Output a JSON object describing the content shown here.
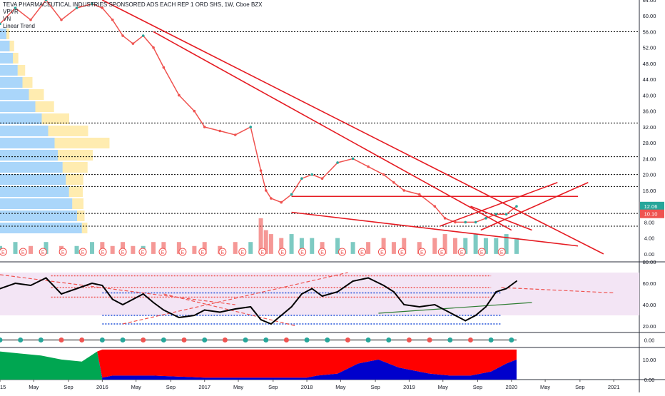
{
  "header": {
    "title": "TEVA PHARMACEUTICAL INDUSTRIES SPONSORED ADS EACH REP 1 ORD SHS, 1W, Cboe BZX",
    "indicators": [
      "VPVR",
      "VN",
      "Linear Trend"
    ]
  },
  "colors": {
    "up": "#26a69a",
    "down": "#ef5350",
    "trendline": "#e51c23",
    "rsi_line": "#000000",
    "rsi_band": "#f3e5f5",
    "vpvr_blue": "#64b5f6",
    "vpvr_yellow": "#ffd54f",
    "green_area": "#00a651",
    "red_area": "#ff0000",
    "blue_area": "#0000cc",
    "last_price_badge": "#26a69a",
    "second_badge": "#ef5350"
  },
  "chart_data": [
    {
      "type": "line",
      "title": "TEVA PHARMACEUTICAL INDUSTRIES SPONSORED ADS EACH REP 1 ORD SHS, 1W, Cboe BZX",
      "x_tick_labels": [
        "2015",
        "May",
        "Sep",
        "2016",
        "May",
        "Sep",
        "2017",
        "May",
        "Sep",
        "2018",
        "May",
        "Sep",
        "2019",
        "May",
        "Sep",
        "2020",
        "May",
        "Sep",
        "2021"
      ],
      "y_tick_labels": [
        "64.00",
        "60.00",
        "56.00",
        "52.00",
        "48.00",
        "44.00",
        "40.00",
        "36.00",
        "32.00",
        "28.00",
        "24.00",
        "20.00",
        "16.00",
        "12.00",
        "8.00",
        "4.00",
        "0.00"
      ],
      "ylim": [
        -2,
        64
      ],
      "price_labels": [
        "12.06",
        "10.10"
      ],
      "earnings_marker": "E",
      "x": [
        2015.0,
        2015.15,
        2015.3,
        2015.45,
        2015.6,
        2015.75,
        2015.9,
        2016.0,
        2016.1,
        2016.2,
        2016.3,
        2016.4,
        2016.5,
        2016.6,
        2016.75,
        2016.9,
        2017.0,
        2017.15,
        2017.3,
        2017.45,
        2017.55,
        2017.6,
        2017.65,
        2017.75,
        2017.85,
        2017.95,
        2018.05,
        2018.15,
        2018.3,
        2018.45,
        2018.6,
        2018.75,
        2018.85,
        2018.95,
        2019.1,
        2019.25,
        2019.35,
        2019.45,
        2019.55,
        2019.65,
        2019.75,
        2019.85,
        2019.95,
        2020.05
      ],
      "y": [
        58,
        62,
        59,
        64,
        59,
        62,
        63,
        62,
        59,
        55,
        53,
        55,
        52,
        47,
        40,
        36,
        32,
        31,
        30,
        32,
        21,
        16,
        14,
        13,
        15,
        19,
        20,
        19,
        23,
        24,
        22,
        20,
        18,
        16,
        15,
        12,
        9,
        8,
        8,
        8,
        9,
        10,
        10,
        12
      ],
      "volume": [
        2,
        3,
        2,
        3,
        2,
        2,
        3,
        3,
        2,
        3,
        2,
        2,
        3,
        3,
        3,
        2,
        3,
        2,
        3,
        3,
        9,
        6,
        5,
        4,
        5,
        4,
        4,
        3,
        4,
        3,
        3,
        4,
        3,
        4,
        3,
        4,
        5,
        4,
        4,
        5,
        4,
        4,
        5,
        4
      ],
      "trendlines": [
        {
          "x1": 2016.0,
          "y1": 64,
          "x2": 2020.9,
          "y2": 0
        },
        {
          "x1": 2016.5,
          "y1": 56,
          "x2": 2020.0,
          "y2": 6
        },
        {
          "x1": 2017.85,
          "y1": 14.5,
          "x2": 2020.65,
          "y2": 14.5
        },
        {
          "x1": 2017.85,
          "y1": 10.5,
          "x2": 2020.65,
          "y2": 2
        },
        {
          "x1": 2019.3,
          "y1": 7,
          "x2": 2020.45,
          "y2": 18
        },
        {
          "x1": 2019.7,
          "y1": 6,
          "x2": 2020.75,
          "y2": 18
        },
        {
          "x1": 2019.6,
          "y1": 12,
          "x2": 2020.2,
          "y2": 6
        }
      ],
      "horizontal_levels": [
        56.0,
        33.0,
        24.5,
        20.0,
        17.0,
        10.2,
        7.0
      ]
    },
    {
      "type": "line",
      "y_tick_labels": [
        "80.00",
        "60.00",
        "40.00",
        "20.00"
      ],
      "ylim": [
        14,
        80
      ],
      "band": [
        30,
        70
      ],
      "x": [
        2015.0,
        2015.15,
        2015.3,
        2015.45,
        2015.6,
        2015.75,
        2015.9,
        2016.0,
        2016.1,
        2016.2,
        2016.3,
        2016.4,
        2016.5,
        2016.6,
        2016.75,
        2016.9,
        2017.0,
        2017.15,
        2017.3,
        2017.45,
        2017.55,
        2017.65,
        2017.75,
        2017.85,
        2017.95,
        2018.05,
        2018.15,
        2018.3,
        2018.45,
        2018.6,
        2018.75,
        2018.85,
        2018.95,
        2019.1,
        2019.25,
        2019.35,
        2019.45,
        2019.55,
        2019.65,
        2019.75,
        2019.85,
        2019.95,
        2020.05
      ],
      "y": [
        55,
        60,
        58,
        65,
        50,
        55,
        60,
        58,
        45,
        40,
        45,
        50,
        42,
        35,
        28,
        30,
        35,
        33,
        36,
        38,
        26,
        22,
        30,
        38,
        50,
        55,
        48,
        52,
        62,
        65,
        58,
        52,
        40,
        38,
        40,
        35,
        30,
        25,
        30,
        38,
        52,
        55,
        62
      ],
      "trendlines": [
        {
          "x1": 2015.0,
          "y1": 68,
          "x2": 2017.3,
          "y2": 40
        },
        {
          "x1": 2016.6,
          "y1": 50,
          "x2": 2017.9,
          "y2": 20
        },
        {
          "x1": 2018.7,
          "y1": 32,
          "x2": 2020.2,
          "y2": 42
        },
        {
          "x1": 2019.9,
          "y1": 56,
          "x2": 2021.0,
          "y2": 51
        },
        {
          "x1": 2016.2,
          "y1": 22,
          "x2": 2018.4,
          "y2": 70
        }
      ],
      "levels_red_dotted": [
        67,
        56,
        47
      ],
      "levels_blue_dotted": [
        51,
        30,
        22
      ]
    },
    {
      "type": "scatter",
      "y_tick_labels": [
        "0.00"
      ],
      "ylim": [
        -1,
        1
      ],
      "x": [
        2015.0,
        2015.2,
        2015.4,
        2015.6,
        2015.8,
        2016.0,
        2016.2,
        2016.4,
        2016.6,
        2016.8,
        2017.0,
        2017.2,
        2017.4,
        2017.6,
        2017.8,
        2018.0,
        2018.2,
        2018.4,
        2018.6,
        2018.8,
        2019.0,
        2019.2,
        2019.4,
        2019.6,
        2019.8,
        2020.0
      ],
      "y": [
        1,
        1,
        1,
        -1,
        -1,
        1,
        1,
        -1,
        1,
        -1,
        1,
        -1,
        1,
        1,
        -1,
        1,
        1,
        -1,
        1,
        1,
        -1,
        -1,
        1,
        -1,
        1,
        1
      ]
    },
    {
      "type": "area",
      "y_tick_labels": [
        "10.00",
        "0.00"
      ],
      "ylim": [
        0,
        16
      ],
      "x": [
        2015.0,
        2015.2,
        2015.4,
        2015.6,
        2015.8,
        2015.95,
        2016.0,
        2016.1,
        2016.5,
        2017.0,
        2017.5,
        2018.0,
        2018.1,
        2018.3,
        2018.5,
        2018.7,
        2018.9,
        2019.0,
        2019.2,
        2019.4,
        2019.6,
        2019.8,
        2019.95,
        2020.05
      ],
      "series": [
        {
          "values": [
            14,
            13,
            12,
            10,
            9,
            14,
            0,
            0,
            0,
            0,
            0,
            0,
            0,
            0,
            0,
            0,
            0,
            0,
            0,
            0,
            0,
            0,
            0,
            0
          ]
        },
        {
          "values": [
            0,
            0,
            0,
            0,
            0,
            0,
            1,
            2,
            2,
            1,
            1,
            1,
            2,
            3,
            8,
            10,
            6,
            5,
            3,
            2,
            2,
            4,
            8,
            10
          ]
        },
        {
          "values": [
            0,
            0,
            0,
            0,
            0,
            0,
            14,
            13,
            13,
            14,
            14,
            14,
            13,
            12,
            7,
            5,
            9,
            10,
            12,
            13,
            13,
            11,
            7,
            5
          ]
        }
      ]
    }
  ]
}
